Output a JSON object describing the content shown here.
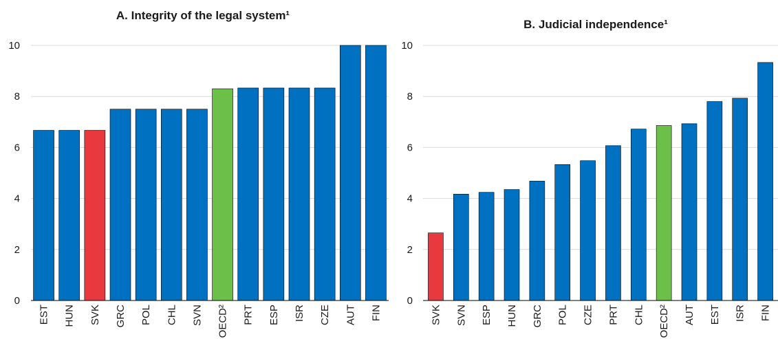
{
  "colors": {
    "default": "#0070c0",
    "highlight": "#e8393f",
    "oecd": "#6cc04a"
  },
  "chart_data": [
    {
      "type": "bar",
      "title": "A. Integrity of the legal system¹",
      "xlabel": "",
      "ylabel": "",
      "ylim": [
        0,
        10
      ],
      "yticks": [
        0,
        2,
        4,
        6,
        8,
        10
      ],
      "grid": true,
      "categories": [
        "EST",
        "HUN",
        "SVK",
        "GRC",
        "POL",
        "CHL",
        "SVN",
        "OECD²",
        "PRT",
        "ESP",
        "ISR",
        "CZE",
        "AUT",
        "FIN"
      ],
      "values": [
        6.67,
        6.67,
        6.67,
        7.5,
        7.5,
        7.5,
        7.5,
        8.3,
        8.33,
        8.33,
        8.33,
        8.33,
        10,
        10
      ],
      "highlight": {
        "SVK": "highlight",
        "OECD²": "oecd"
      }
    },
    {
      "type": "bar",
      "title": "B. Judicial independence¹",
      "xlabel": "",
      "ylabel": "",
      "ylim": [
        0,
        10
      ],
      "yticks": [
        0,
        2,
        4,
        6,
        8,
        10
      ],
      "grid": true,
      "categories": [
        "SVK",
        "SVN",
        "ESP",
        "HUN",
        "GRC",
        "POL",
        "CZE",
        "PRT",
        "CHL",
        "OECD²",
        "AUT",
        "EST",
        "ISR",
        "FIN"
      ],
      "values": [
        2.65,
        4.17,
        4.24,
        4.35,
        4.68,
        5.33,
        5.48,
        6.07,
        6.72,
        6.86,
        6.93,
        7.8,
        7.93,
        9.33
      ],
      "highlight": {
        "SVK": "highlight",
        "OECD²": "oecd"
      }
    }
  ]
}
